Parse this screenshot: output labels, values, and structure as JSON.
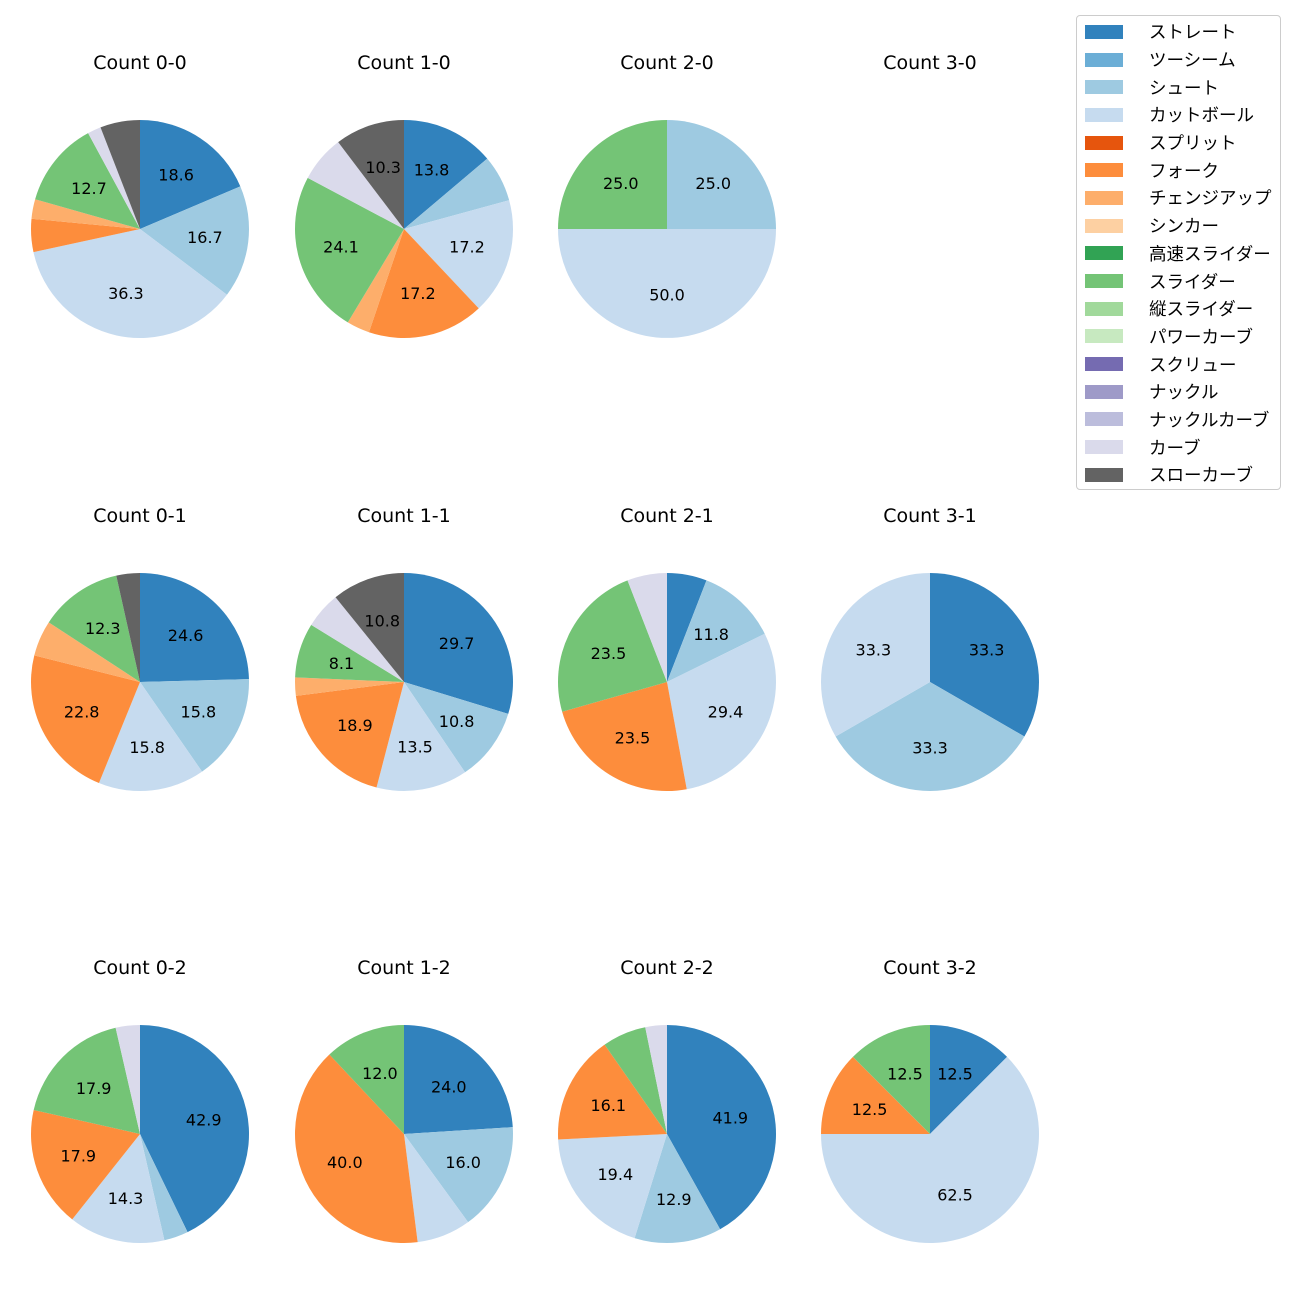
{
  "chart_data": {
    "type": "pie",
    "legend_position": "top-right",
    "legend": [
      {
        "name": "ストレート",
        "color": "#3182bd"
      },
      {
        "name": "ツーシーム",
        "color": "#6baed6"
      },
      {
        "name": "シュート",
        "color": "#9ecae1"
      },
      {
        "name": "カットボール",
        "color": "#c6dbef"
      },
      {
        "name": "スプリット",
        "color": "#e6550d"
      },
      {
        "name": "フォーク",
        "color": "#fd8d3c"
      },
      {
        "name": "チェンジアップ",
        "color": "#fdae6b"
      },
      {
        "name": "シンカー",
        "color": "#fdd0a2"
      },
      {
        "name": "高速スライダー",
        "color": "#31a354"
      },
      {
        "name": "スライダー",
        "color": "#74c476"
      },
      {
        "name": "縦スライダー",
        "color": "#a1d99b"
      },
      {
        "name": "パワーカーブ",
        "color": "#c7e9c0"
      },
      {
        "name": "スクリュー",
        "color": "#756bb1"
      },
      {
        "name": "ナックル",
        "color": "#9e9ac8"
      },
      {
        "name": "ナックルカーブ",
        "color": "#bcbddc"
      },
      {
        "name": "カーブ",
        "color": "#dadaeb"
      },
      {
        "name": "スローカーブ",
        "color": "#636363"
      }
    ],
    "charts": [
      {
        "title": "Count 0-0",
        "slices": [
          {
            "pitch": "ストレート",
            "value": 18.6,
            "label": "18.6"
          },
          {
            "pitch": "シュート",
            "value": 16.7,
            "label": "16.7"
          },
          {
            "pitch": "カットボール",
            "value": 36.3,
            "label": "36.3"
          },
          {
            "pitch": "フォーク",
            "value": 4.9,
            "label": ""
          },
          {
            "pitch": "チェンジアップ",
            "value": 2.9,
            "label": ""
          },
          {
            "pitch": "スライダー",
            "value": 12.7,
            "label": "12.7"
          },
          {
            "pitch": "カーブ",
            "value": 2.0,
            "label": ""
          },
          {
            "pitch": "スローカーブ",
            "value": 5.9,
            "label": ""
          }
        ]
      },
      {
        "title": "Count 1-0",
        "slices": [
          {
            "pitch": "ストレート",
            "value": 13.8,
            "label": "13.8"
          },
          {
            "pitch": "シュート",
            "value": 6.9,
            "label": ""
          },
          {
            "pitch": "カットボール",
            "value": 17.2,
            "label": "17.2"
          },
          {
            "pitch": "フォーク",
            "value": 17.2,
            "label": "17.2"
          },
          {
            "pitch": "チェンジアップ",
            "value": 3.4,
            "label": ""
          },
          {
            "pitch": "スライダー",
            "value": 24.1,
            "label": "24.1"
          },
          {
            "pitch": "カーブ",
            "value": 6.9,
            "label": ""
          },
          {
            "pitch": "スローカーブ",
            "value": 10.3,
            "label": "10.3"
          }
        ]
      },
      {
        "title": "Count 2-0",
        "slices": [
          {
            "pitch": "シュート",
            "value": 25.0,
            "label": "25.0"
          },
          {
            "pitch": "カットボール",
            "value": 50.0,
            "label": "50.0"
          },
          {
            "pitch": "スライダー",
            "value": 25.0,
            "label": "25.0"
          }
        ]
      },
      {
        "title": "Count 3-0",
        "slices": []
      },
      {
        "title": "Count 0-1",
        "slices": [
          {
            "pitch": "ストレート",
            "value": 24.6,
            "label": "24.6"
          },
          {
            "pitch": "シュート",
            "value": 15.8,
            "label": "15.8"
          },
          {
            "pitch": "カットボール",
            "value": 15.8,
            "label": "15.8"
          },
          {
            "pitch": "フォーク",
            "value": 22.8,
            "label": "22.8"
          },
          {
            "pitch": "チェンジアップ",
            "value": 5.3,
            "label": ""
          },
          {
            "pitch": "スライダー",
            "value": 12.3,
            "label": "12.3"
          },
          {
            "pitch": "スローカーブ",
            "value": 3.5,
            "label": ""
          }
        ]
      },
      {
        "title": "Count 1-1",
        "slices": [
          {
            "pitch": "ストレート",
            "value": 29.7,
            "label": "29.7"
          },
          {
            "pitch": "シュート",
            "value": 10.8,
            "label": "10.8"
          },
          {
            "pitch": "カットボール",
            "value": 13.5,
            "label": "13.5"
          },
          {
            "pitch": "フォーク",
            "value": 18.9,
            "label": "18.9"
          },
          {
            "pitch": "チェンジアップ",
            "value": 2.7,
            "label": ""
          },
          {
            "pitch": "スライダー",
            "value": 8.1,
            "label": "8.1"
          },
          {
            "pitch": "カーブ",
            "value": 5.4,
            "label": ""
          },
          {
            "pitch": "スローカーブ",
            "value": 10.8,
            "label": "10.8"
          }
        ]
      },
      {
        "title": "Count 2-1",
        "slices": [
          {
            "pitch": "ストレート",
            "value": 5.9,
            "label": ""
          },
          {
            "pitch": "シュート",
            "value": 11.8,
            "label": "11.8"
          },
          {
            "pitch": "カットボール",
            "value": 29.4,
            "label": "29.4"
          },
          {
            "pitch": "フォーク",
            "value": 23.5,
            "label": "23.5"
          },
          {
            "pitch": "スライダー",
            "value": 23.5,
            "label": "23.5"
          },
          {
            "pitch": "カーブ",
            "value": 5.9,
            "label": ""
          }
        ]
      },
      {
        "title": "Count 3-1",
        "slices": [
          {
            "pitch": "ストレート",
            "value": 33.3,
            "label": "33.3"
          },
          {
            "pitch": "シュート",
            "value": 33.3,
            "label": "33.3"
          },
          {
            "pitch": "カットボール",
            "value": 33.3,
            "label": "33.3"
          }
        ]
      },
      {
        "title": "Count 0-2",
        "slices": [
          {
            "pitch": "ストレート",
            "value": 42.9,
            "label": "42.9"
          },
          {
            "pitch": "シュート",
            "value": 3.6,
            "label": ""
          },
          {
            "pitch": "カットボール",
            "value": 14.3,
            "label": "14.3"
          },
          {
            "pitch": "フォーク",
            "value": 17.9,
            "label": "17.9"
          },
          {
            "pitch": "スライダー",
            "value": 17.9,
            "label": "17.9"
          },
          {
            "pitch": "カーブ",
            "value": 3.6,
            "label": ""
          }
        ]
      },
      {
        "title": "Count 1-2",
        "slices": [
          {
            "pitch": "ストレート",
            "value": 24.0,
            "label": "24.0"
          },
          {
            "pitch": "シュート",
            "value": 16.0,
            "label": "16.0"
          },
          {
            "pitch": "カットボール",
            "value": 8.0,
            "label": ""
          },
          {
            "pitch": "フォーク",
            "value": 40.0,
            "label": "40.0"
          },
          {
            "pitch": "スライダー",
            "value": 12.0,
            "label": "12.0"
          }
        ]
      },
      {
        "title": "Count 2-2",
        "slices": [
          {
            "pitch": "ストレート",
            "value": 41.9,
            "label": "41.9"
          },
          {
            "pitch": "シュート",
            "value": 12.9,
            "label": "12.9"
          },
          {
            "pitch": "カットボール",
            "value": 19.4,
            "label": "19.4"
          },
          {
            "pitch": "フォーク",
            "value": 16.1,
            "label": "16.1"
          },
          {
            "pitch": "スライダー",
            "value": 6.5,
            "label": ""
          },
          {
            "pitch": "カーブ",
            "value": 3.2,
            "label": ""
          }
        ]
      },
      {
        "title": "Count 3-2",
        "slices": [
          {
            "pitch": "ストレート",
            "value": 12.5,
            "label": "12.5"
          },
          {
            "pitch": "カットボール",
            "value": 62.5,
            "label": "62.5"
          },
          {
            "pitch": "フォーク",
            "value": 12.5,
            "label": "12.5"
          },
          {
            "pitch": "スライダー",
            "value": 12.5,
            "label": "12.5"
          }
        ]
      }
    ]
  }
}
